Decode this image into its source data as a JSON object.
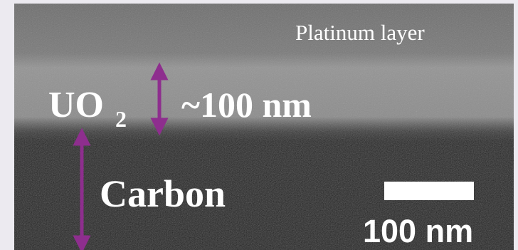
{
  "labels": {
    "platinum": "Platinum layer",
    "uo": "UO",
    "uo_sub": "2",
    "thickness": "~100 nm",
    "carbon": "Carbon",
    "scale_bar": "100 nm"
  }
}
